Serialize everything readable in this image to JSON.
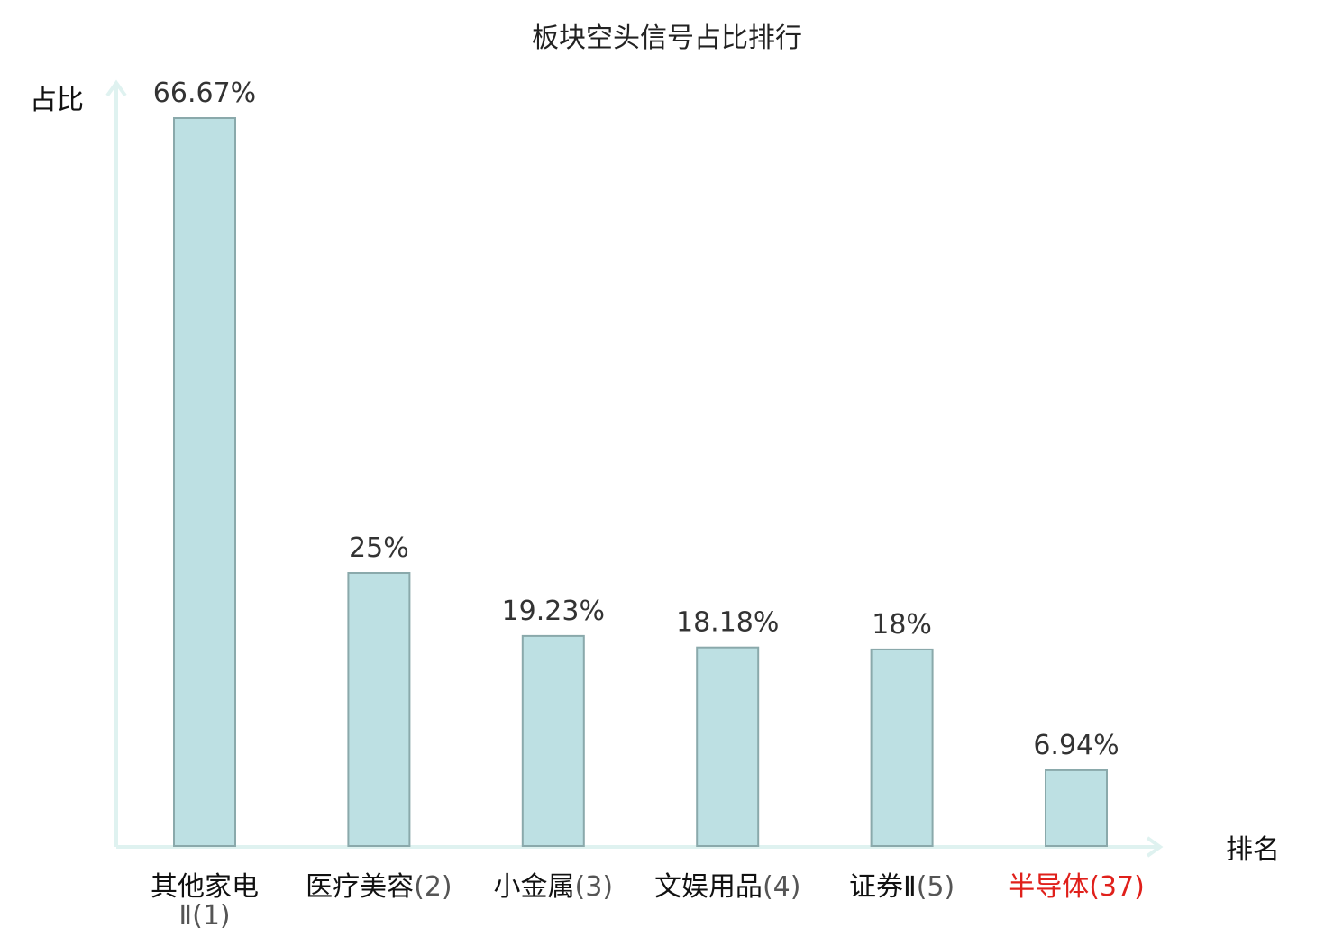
{
  "chart_data": {
    "type": "bar",
    "title": "板块空头信号占比排行",
    "ylabel": "占比",
    "xlabel": "排名",
    "categories": [
      {
        "name": "其他家电Ⅱ",
        "rank": "(1)"
      },
      {
        "name": "医疗美容",
        "rank": "(2)"
      },
      {
        "name": "小金属",
        "rank": "(3)"
      },
      {
        "name": "文娱用品",
        "rank": "(4)"
      },
      {
        "name": "证券Ⅱ",
        "rank": "(5)"
      },
      {
        "name": "半导体",
        "rank": "(37)"
      }
    ],
    "values": [
      66.67,
      25,
      19.23,
      18.18,
      18,
      6.94
    ],
    "value_labels": [
      "66.67%",
      "25%",
      "19.23%",
      "18.18%",
      "18%",
      "6.94%"
    ],
    "highlight_index": 5,
    "colors": {
      "bar_fill": "#bde0e3",
      "bar_stroke": "#8aa9ab",
      "axis": "#dff2f0",
      "highlight": "#e0201b"
    },
    "grid": false
  }
}
